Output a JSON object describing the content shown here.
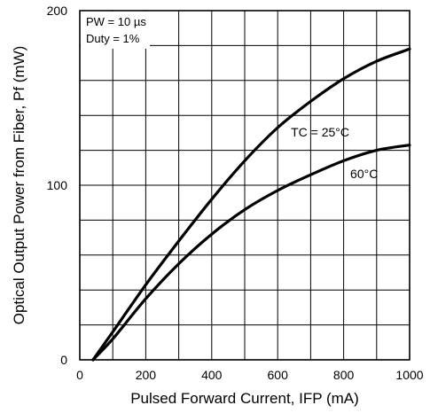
{
  "chart_data": {
    "type": "line",
    "xlabel": "Pulsed Forward Current, IFP (mA)",
    "ylabel": "Optical Output Power from Fiber,  Pf (mW)",
    "xlim": [
      0,
      1000
    ],
    "ylim": [
      0,
      200
    ],
    "x_ticks": [
      0,
      200,
      400,
      600,
      800,
      1000
    ],
    "y_ticks": [
      0,
      100,
      200
    ],
    "grid": true,
    "annotations": [
      "PW = 10 µs",
      "Duty = 1%"
    ],
    "series": [
      {
        "name": "TC = 25°C",
        "x": [
          40,
          100,
          200,
          300,
          400,
          500,
          600,
          700,
          800,
          900,
          1000
        ],
        "y": [
          0,
          16,
          43,
          68,
          92,
          114,
          133,
          148,
          161,
          171,
          178
        ]
      },
      {
        "name": "60°C",
        "x": [
          40,
          100,
          200,
          300,
          400,
          500,
          600,
          700,
          800,
          900,
          1000
        ],
        "y": [
          0,
          12,
          35,
          55,
          72,
          86,
          97,
          106,
          114,
          120,
          123
        ]
      }
    ]
  }
}
